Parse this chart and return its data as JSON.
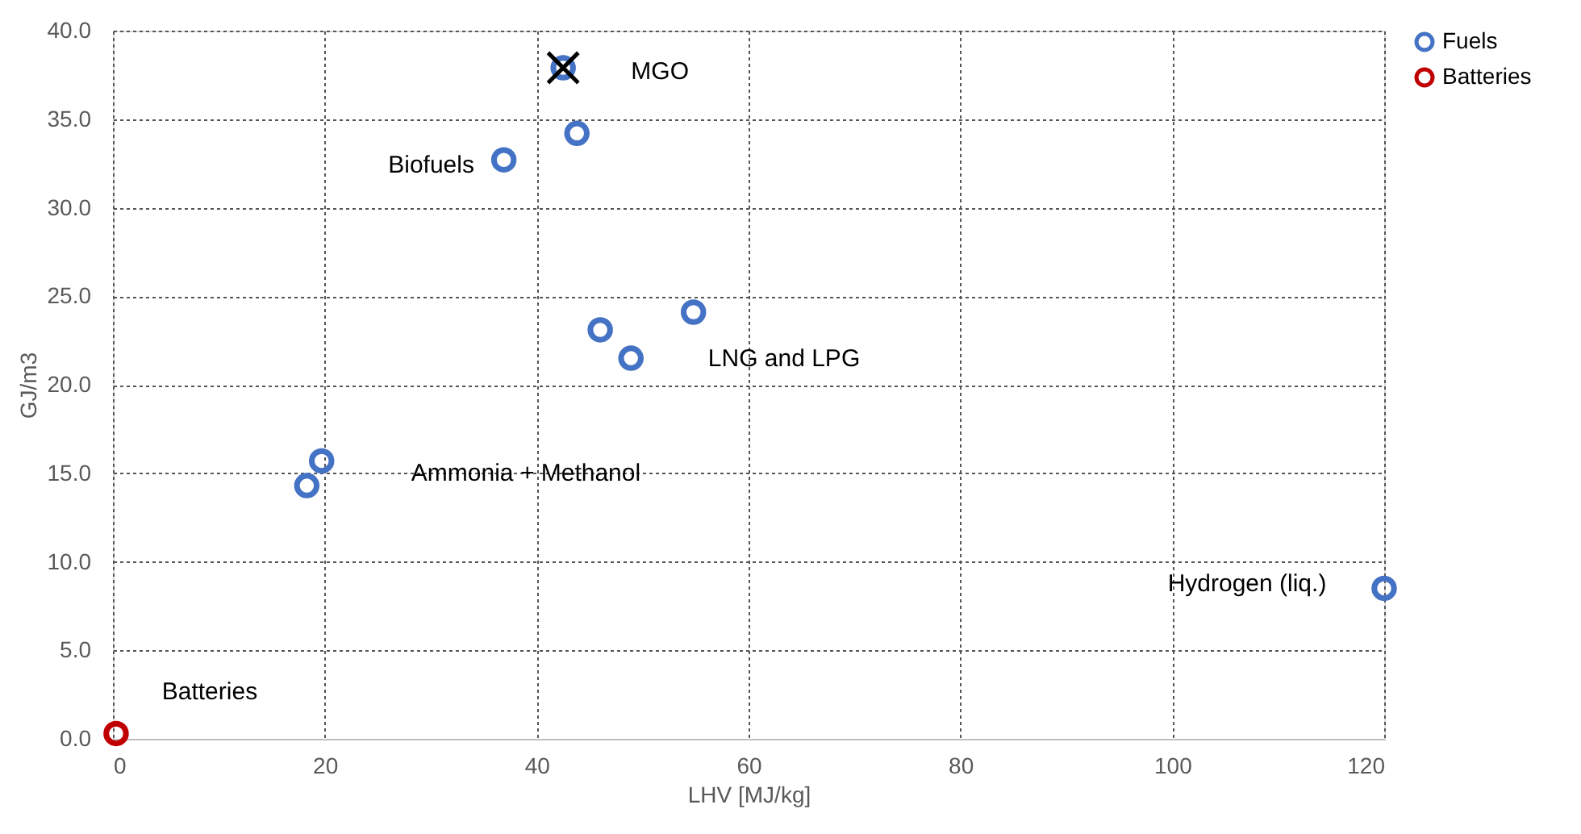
{
  "chart_data": {
    "type": "scatter",
    "xlabel": "LHV [MJ/kg]",
    "ylabel": "GJ/m3",
    "series": [
      {
        "name": "Fuels",
        "color": "#4472c4",
        "marker": "circle",
        "x": [
          42.5,
          43.8,
          36.9,
          54.8,
          46.0,
          48.9,
          19.7,
          18.3,
          120
        ],
        "values": [
          37.9,
          34.2,
          32.7,
          24.1,
          23.1,
          21.5,
          15.7,
          14.3,
          8.5
        ]
      },
      {
        "name": "Batteries",
        "color": "#c00000",
        "marker": "circle",
        "x": [
          0.3
        ],
        "values": [
          0.3
        ]
      },
      {
        "color": "#000000",
        "marker": "cross",
        "x": [
          42.5
        ],
        "values": [
          37.9
        ]
      }
    ],
    "annotations": [
      {
        "text": "MGO",
        "x": 42.5,
        "y": 37.9
      },
      {
        "text": "Biofuels",
        "x": 36.9,
        "y": 32.7
      },
      "LNG and LPG",
      "Ammonia + Methanol",
      {
        "text": "Hydrogen (liq.)",
        "x": 120,
        "y": 8.5
      },
      {
        "text": "Batteries",
        "x": 0.3,
        "y": 0.3
      }
    ],
    "xlim": [
      0,
      120
    ],
    "xticks": [
      0,
      20,
      40,
      60,
      80,
      100,
      120
    ],
    "ylim": [
      0,
      40
    ],
    "yticks": [
      {
        "value": 0,
        "label": "0.0"
      },
      {
        "value": 5,
        "label": "5.0"
      },
      {
        "value": 10,
        "label": "10.0"
      },
      {
        "value": 15,
        "label": "15.0"
      },
      {
        "value": 20,
        "label": "20.0"
      },
      {
        "value": 25,
        "label": "25.0"
      },
      {
        "value": 30,
        "label": "30.0"
      },
      {
        "value": 35,
        "label": "35.0"
      },
      {
        "value": 40,
        "label": "40.0"
      }
    ],
    "grid": true,
    "legend": "right"
  }
}
